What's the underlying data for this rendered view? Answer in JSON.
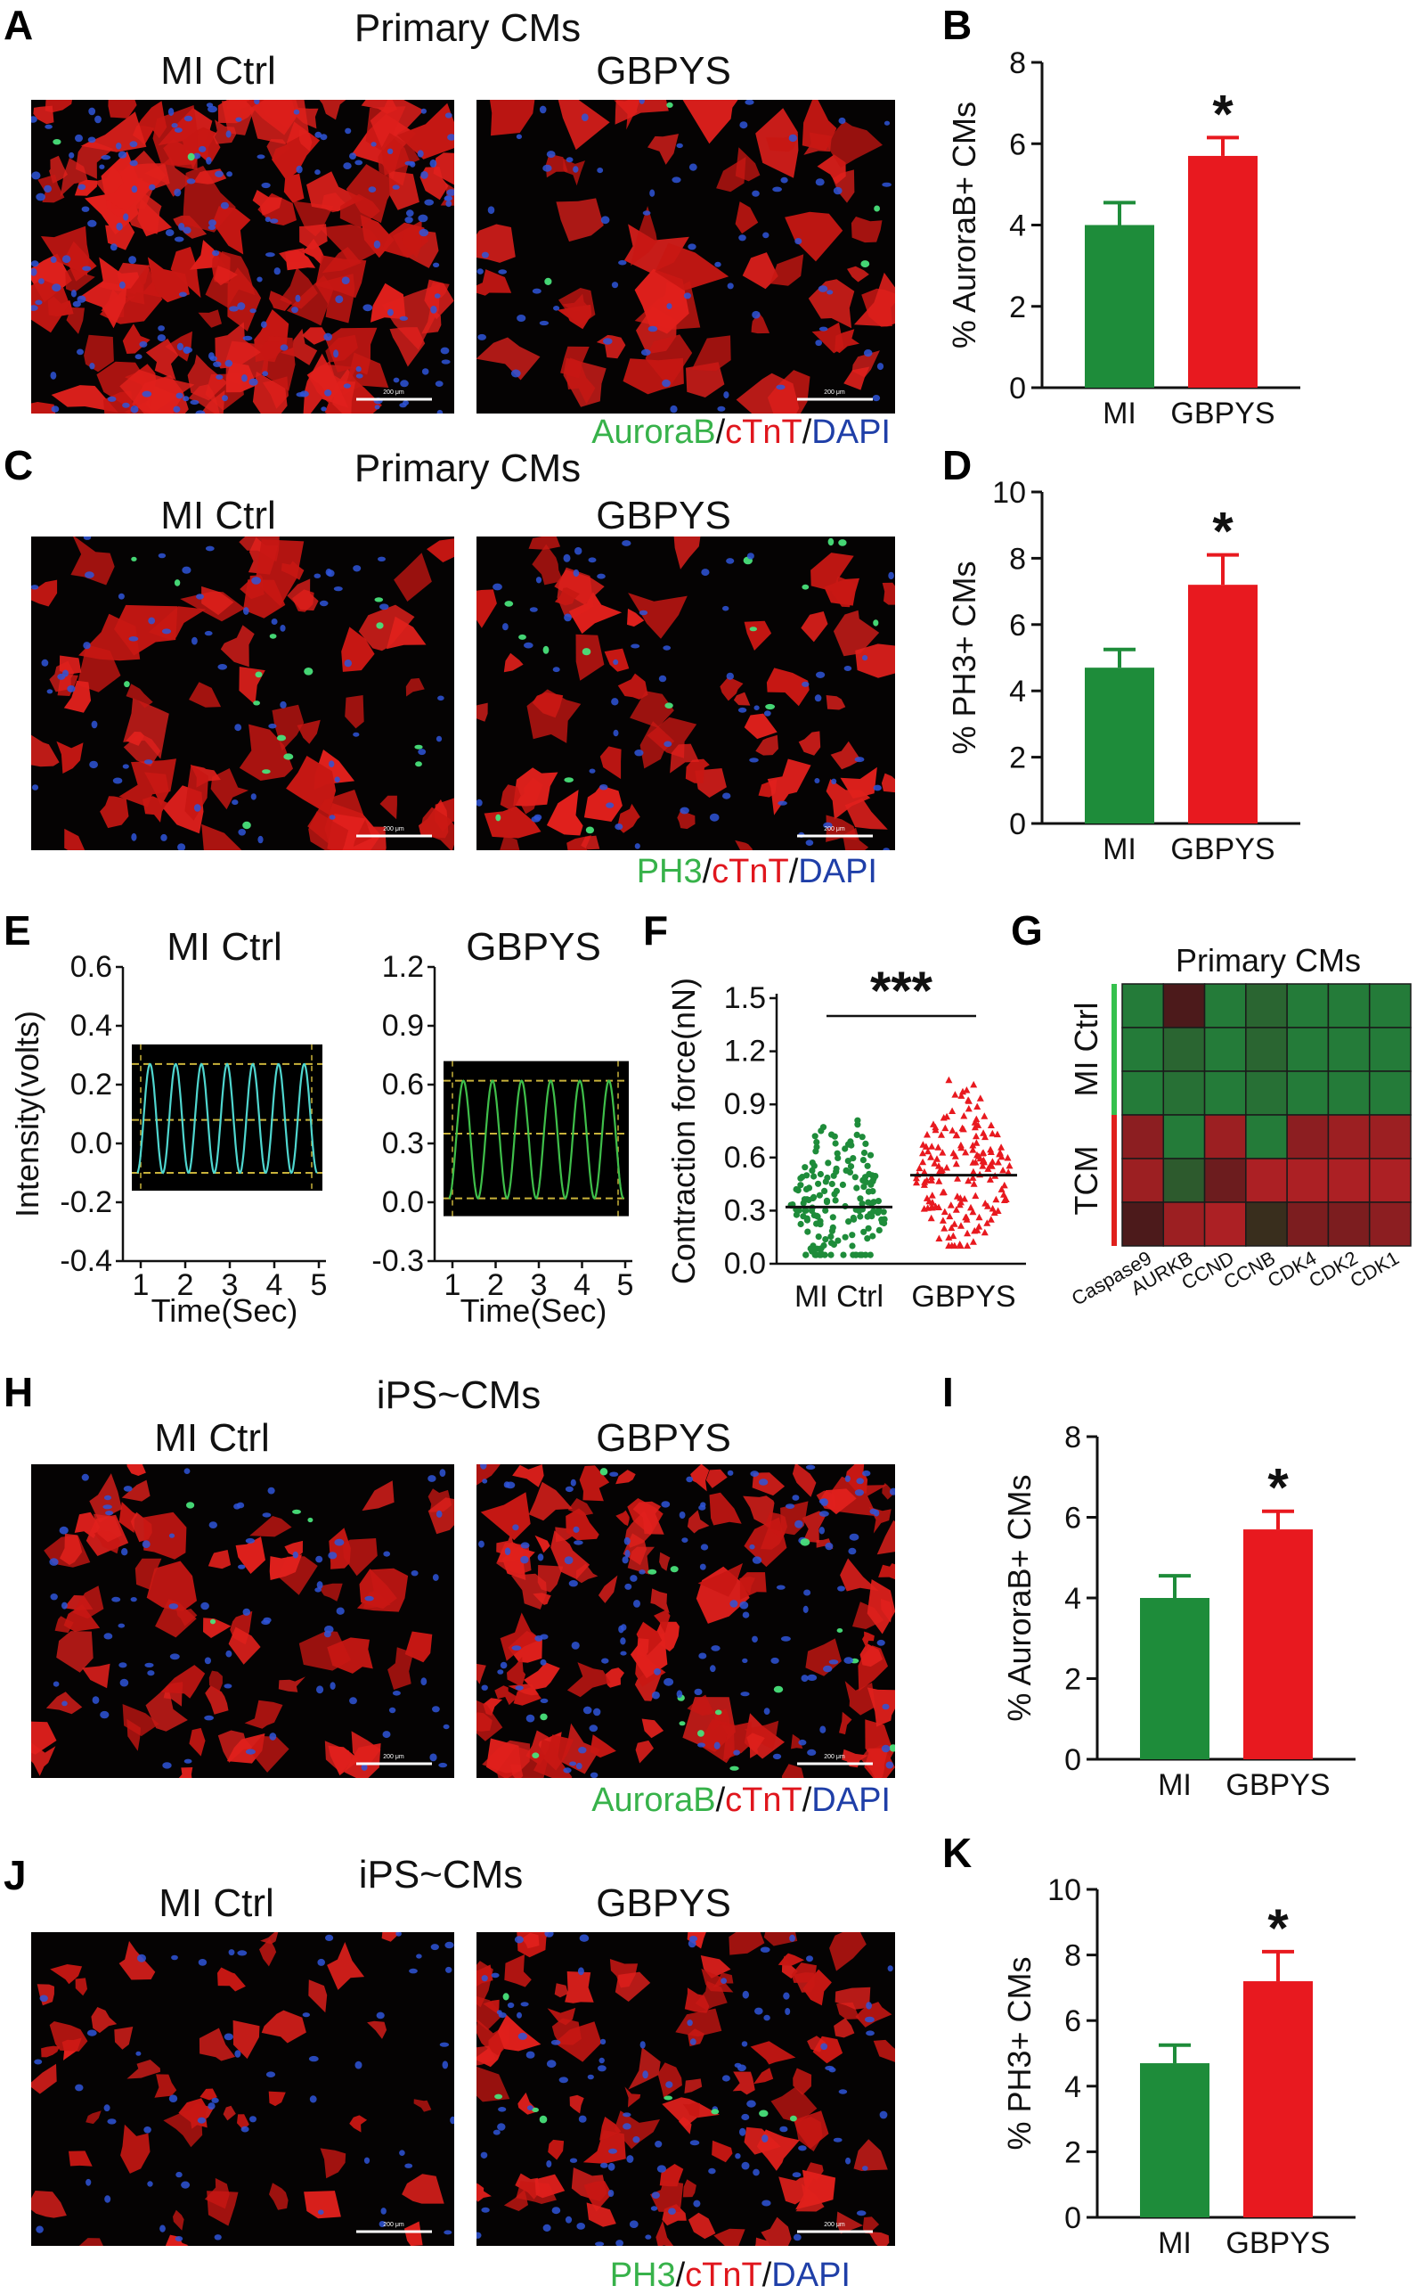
{
  "panels": {
    "A": {
      "letter": "A",
      "title": "Primary CMs",
      "left_label": "MI Ctrl",
      "right_label": "GBPYS",
      "stain": [
        {
          "text": "AuroraB",
          "color": "#37b24a"
        },
        {
          "text": "/",
          "color": "#111111"
        },
        {
          "text": "cTnT",
          "color": "#e0161d"
        },
        {
          "text": "/",
          "color": "#111111"
        },
        {
          "text": "DAPI",
          "color": "#1f3fa8"
        }
      ]
    },
    "C": {
      "letter": "C",
      "title": "Primary CMs",
      "left_label": "MI Ctrl",
      "right_label": "GBPYS",
      "stain": [
        {
          "text": "PH3",
          "color": "#37b24a"
        },
        {
          "text": "/",
          "color": "#111111"
        },
        {
          "text": "cTnT",
          "color": "#e0161d"
        },
        {
          "text": "/",
          "color": "#111111"
        },
        {
          "text": "DAPI",
          "color": "#1f3fa8"
        }
      ]
    },
    "E": {
      "letter": "E",
      "left_label": "MI Ctrl",
      "right_label": "GBPYS"
    },
    "F": {
      "letter": "F"
    },
    "G": {
      "letter": "G",
      "title": "Primary CMs"
    },
    "H": {
      "letter": "H",
      "title": "iPS~CMs",
      "left_label": "MI Ctrl",
      "right_label": "GBPYS",
      "stain": [
        {
          "text": "AuroraB",
          "color": "#37b24a"
        },
        {
          "text": "/",
          "color": "#111111"
        },
        {
          "text": "cTnT",
          "color": "#e0161d"
        },
        {
          "text": "/",
          "color": "#111111"
        },
        {
          "text": "DAPI",
          "color": "#1f3fa8"
        }
      ]
    },
    "J": {
      "letter": "J",
      "title": "iPS~CMs",
      "left_label": "MI Ctrl",
      "right_label": "GBPYS",
      "stain": [
        {
          "text": "PH3",
          "color": "#37b24a"
        },
        {
          "text": "/",
          "color": "#111111"
        },
        {
          "text": "cTnT",
          "color": "#e0161d"
        },
        {
          "text": "/",
          "color": "#111111"
        },
        {
          "text": "DAPI",
          "color": "#1f3fa8"
        }
      ]
    },
    "B": {
      "letter": "B"
    },
    "D": {
      "letter": "D"
    },
    "I": {
      "letter": "I"
    },
    "K": {
      "letter": "K"
    }
  },
  "colors": {
    "mi": "#1e8c3a",
    "gbpys": "#e8191f",
    "trace_mi": "#4fd6cf",
    "trace_gbpys": "#3fbf4a",
    "guide": "#c9b23a"
  },
  "chart_data": [
    {
      "id": "B",
      "type": "bar",
      "categories": [
        "MI",
        "GBPYS"
      ],
      "values": [
        4.0,
        5.7
      ],
      "errors": [
        0.55,
        0.45
      ],
      "ylabel": "% AuroraB+ CMs",
      "ylim": [
        0,
        8
      ],
      "yticks": [
        0,
        2,
        4,
        6,
        8
      ],
      "significance": "*"
    },
    {
      "id": "D",
      "type": "bar",
      "categories": [
        "MI",
        "GBPYS"
      ],
      "values": [
        4.7,
        7.2
      ],
      "errors": [
        0.55,
        0.9
      ],
      "ylabel": "% PH3+ CMs",
      "ylim": [
        0,
        10
      ],
      "yticks": [
        0,
        2,
        4,
        6,
        8,
        10
      ],
      "significance": "*"
    },
    {
      "id": "I",
      "type": "bar",
      "categories": [
        "MI",
        "GBPYS"
      ],
      "values": [
        4.0,
        5.7
      ],
      "errors": [
        0.55,
        0.45
      ],
      "ylabel": "% AuroraB+ CMs",
      "ylim": [
        0,
        8
      ],
      "yticks": [
        0,
        2,
        4,
        6,
        8
      ],
      "significance": "*"
    },
    {
      "id": "K",
      "type": "bar",
      "categories": [
        "MI",
        "GBPYS"
      ],
      "values": [
        4.7,
        7.2
      ],
      "errors": [
        0.55,
        0.9
      ],
      "ylabel": "% PH3+ CMs",
      "ylim": [
        0,
        10
      ],
      "yticks": [
        0,
        2,
        4,
        6,
        8,
        10
      ],
      "significance": "*"
    },
    {
      "id": "E1",
      "type": "line",
      "title": "MI Ctrl",
      "xlabel": "Time(Sec)",
      "ylabel": "Intensity(volts)",
      "xticks": [
        1,
        2,
        3,
        4,
        5
      ],
      "ylim": [
        -0.4,
        0.6
      ],
      "yticks": [
        "0.6",
        "0.4",
        "0.2",
        "0.0",
        "-0.2",
        "-0.4"
      ],
      "cycles": 7,
      "amplitude_range": [
        -0.1,
        0.27
      ],
      "guides": [
        -0.1,
        0.08,
        0.27
      ]
    },
    {
      "id": "E2",
      "type": "line",
      "title": "GBPYS",
      "xlabel": "Time(Sec)",
      "xticks": [
        1,
        2,
        3,
        4,
        5
      ],
      "ylim": [
        -0.3,
        1.2
      ],
      "yticks": [
        "1.2",
        "0.9",
        "0.6",
        "0.3",
        "0.0",
        "-0.3"
      ],
      "cycles": 6,
      "amplitude_range": [
        0.02,
        0.62
      ],
      "guides": [
        0.02,
        0.35,
        0.62
      ]
    },
    {
      "id": "F",
      "type": "scatter",
      "categories": [
        "MI Ctrl",
        "GBPYS"
      ],
      "ylabel": "Contraction force(nN)",
      "ylim": [
        0,
        1.5
      ],
      "yticks": [
        "1.5",
        "1.2",
        "0.9",
        "0.6",
        "0.3",
        "0.0"
      ],
      "means": [
        0.32,
        0.5
      ],
      "ranges": [
        [
          0.05,
          1.0
        ],
        [
          0.1,
          1.12
        ]
      ],
      "significance": "***"
    },
    {
      "id": "G",
      "type": "heatmap",
      "rows": [
        "MI Ctrl",
        "MI Ctrl",
        "MI Ctrl",
        "TCM",
        "TCM",
        "TCM"
      ],
      "row_groups": [
        "MI Ctrl",
        "TCM"
      ],
      "columns": [
        "Caspase9",
        "AURKB",
        "CCND",
        "CCNB",
        "CDK4",
        "CDK2",
        "CDK1"
      ],
      "values": [
        [
          -0.8,
          0.1,
          -0.8,
          -0.6,
          -0.8,
          -0.8,
          -0.8
        ],
        [
          -0.8,
          -0.6,
          -0.8,
          -0.6,
          -0.8,
          -0.8,
          -0.8
        ],
        [
          -0.8,
          -0.7,
          -0.8,
          -0.7,
          -0.8,
          -0.8,
          -0.8
        ],
        [
          0.5,
          -0.8,
          0.6,
          -0.8,
          0.5,
          0.6,
          0.6
        ],
        [
          0.6,
          -0.5,
          0.3,
          0.7,
          0.7,
          0.7,
          0.7
        ],
        [
          0.1,
          0.6,
          0.7,
          -0.1,
          0.4,
          0.4,
          0.5
        ]
      ]
    }
  ]
}
